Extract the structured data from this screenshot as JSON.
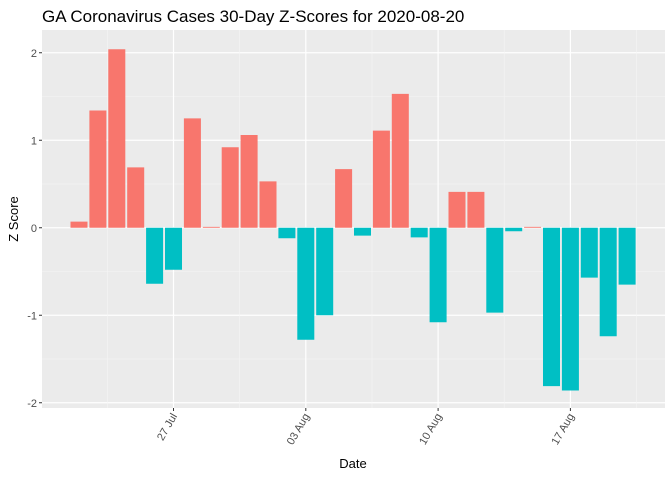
{
  "chart_data": {
    "type": "bar",
    "title": "GA Coronavirus Cases 30-Day Z-Scores for 2020-08-20",
    "x_label": "Date",
    "y_label": "Z Score",
    "categories": [
      null,
      null,
      null,
      null,
      null,
      "27 Jul",
      null,
      null,
      null,
      null,
      null,
      null,
      "03 Aug",
      null,
      null,
      null,
      null,
      null,
      null,
      "10 Aug",
      null,
      null,
      null,
      null,
      null,
      null,
      "17 Aug",
      null,
      null,
      null
    ],
    "values": [
      0.07,
      1.34,
      2.04,
      0.69,
      -0.64,
      -0.48,
      1.25,
      0.01,
      0.92,
      1.06,
      0.53,
      -0.12,
      -1.28,
      -1.0,
      0.67,
      -0.09,
      1.11,
      1.53,
      -0.11,
      -1.08,
      0.41,
      0.41,
      -0.97,
      -0.04,
      0.01,
      -1.81,
      -1.86,
      -0.57,
      -1.24,
      -0.65
    ],
    "positive_color": "#F8766D",
    "negative_color": "#00BFC4",
    "ylim": [
      -2.06,
      2.26
    ],
    "yticks": [
      -2,
      -1,
      0,
      1,
      2
    ],
    "grid": true
  }
}
